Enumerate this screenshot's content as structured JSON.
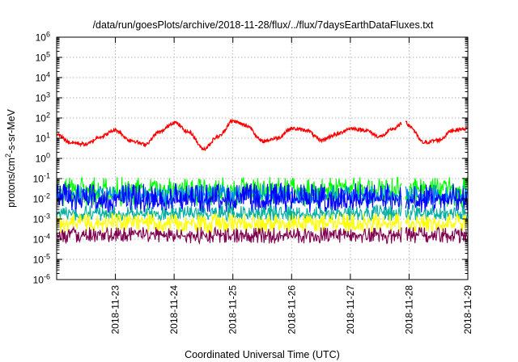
{
  "chart_data": {
    "type": "line",
    "title": "/data/run/goesPlots/archive/2018-11-28/flux/../flux/7daysEarthDataFluxes.txt",
    "xlabel": "Coordinated Universal Time (UTC)",
    "ylabel": {
      "base": "protons/cm",
      "sup": "2",
      "rest": "-s-sr-MeV"
    },
    "yscale": "log",
    "ylim_exponent": [
      -6,
      6
    ],
    "y_ticks": [
      {
        "base": "10",
        "exp": "-6"
      },
      {
        "base": "10",
        "exp": "-5"
      },
      {
        "base": "10",
        "exp": "-4"
      },
      {
        "base": "10",
        "exp": "-3"
      },
      {
        "base": "10",
        "exp": "-2"
      },
      {
        "base": "10",
        "exp": "-1"
      },
      {
        "base": "10",
        "exp": "0"
      },
      {
        "base": "10",
        "exp": "1"
      },
      {
        "base": "10",
        "exp": "2"
      },
      {
        "base": "10",
        "exp": "3"
      },
      {
        "base": "10",
        "exp": "4"
      },
      {
        "base": "10",
        "exp": "5"
      },
      {
        "base": "10",
        "exp": "6"
      }
    ],
    "x_ticks": [
      "2018-11-23",
      "2018-11-24",
      "2018-11-25",
      "2018-11-26",
      "2018-11-27",
      "2018-11-28",
      "2018-11-29"
    ],
    "xlim": [
      "2018-11-22 00:00",
      "2018-11-29 00:00"
    ],
    "grid": true,
    "data_gap": [
      "2018-11-27 21:00",
      "2018-11-27 22:30"
    ],
    "series": [
      {
        "color": "#ff0000",
        "x": [
          "2018-11-22 00:00",
          "2018-11-22 06:00",
          "2018-11-22 12:00",
          "2018-11-22 18:00",
          "2018-11-23 00:00",
          "2018-11-23 06:00",
          "2018-11-23 12:00",
          "2018-11-23 18:00",
          "2018-11-24 00:00",
          "2018-11-24 06:00",
          "2018-11-24 12:00",
          "2018-11-24 18:00",
          "2018-11-25 00:00",
          "2018-11-25 06:00",
          "2018-11-25 12:00",
          "2018-11-25 18:00",
          "2018-11-26 00:00",
          "2018-11-26 06:00",
          "2018-11-26 12:00",
          "2018-11-26 18:00",
          "2018-11-27 00:00",
          "2018-11-27 06:00",
          "2018-11-27 12:00",
          "2018-11-27 18:00",
          "2018-11-27 21:00",
          "2018-11-27 22:30",
          "2018-11-28 00:00",
          "2018-11-28 06:00",
          "2018-11-28 12:00",
          "2018-11-28 18:00",
          "2018-11-29 00:00"
        ],
        "y": [
          15,
          6,
          5,
          12,
          25,
          8,
          5,
          20,
          60,
          20,
          3,
          12,
          70,
          40,
          7,
          10,
          30,
          25,
          8,
          15,
          30,
          25,
          12,
          30,
          50,
          80,
          40,
          6,
          8,
          25,
          30
        ]
      },
      {
        "color": "#00ff00",
        "y_band": [
          0.004,
          0.12
        ],
        "typical": 0.03
      },
      {
        "color": "#0080ff",
        "y_band": [
          0.005,
          0.05
        ],
        "typical": 0.015
      },
      {
        "color": "#0000ff",
        "y_band": [
          0.002,
          0.06
        ],
        "typical": 0.008
      },
      {
        "color": "#00b0a0",
        "y_band": [
          0.0008,
          0.005
        ],
        "typical": 0.0018
      },
      {
        "color": "#ffff00",
        "y_band": [
          0.0002,
          0.002
        ],
        "typical": 0.0006
      },
      {
        "color": "#800050",
        "y_band": [
          6e-05,
          0.0004
        ],
        "typical": 0.00015
      }
    ]
  }
}
